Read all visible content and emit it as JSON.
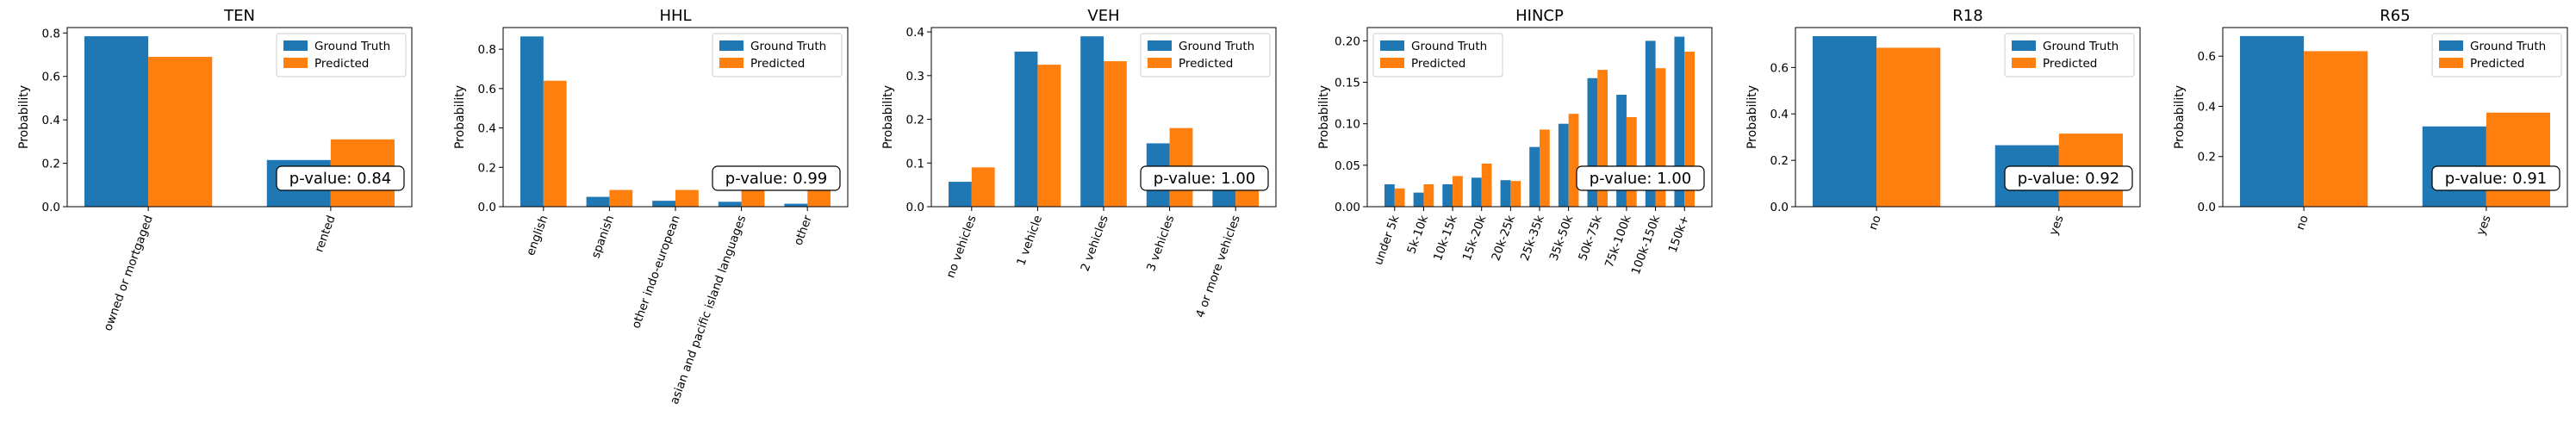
{
  "colors": {
    "ground_truth": "#1f77b4",
    "predicted": "#ff7f0e"
  },
  "chart_data": [
    {
      "type": "bar",
      "title": "TEN",
      "ylabel": "Probability",
      "categories": [
        "owned or mortgaged",
        "rented"
      ],
      "series": [
        {
          "name": "Ground Truth",
          "values": [
            0.785,
            0.215
          ]
        },
        {
          "name": "Predicted",
          "values": [
            0.69,
            0.31
          ]
        }
      ],
      "ylim": [
        0,
        0.825
      ],
      "yticks": [
        0.0,
        0.2,
        0.4,
        0.6,
        0.8
      ],
      "ytick_labels": [
        "0.0",
        "0.2",
        "0.4",
        "0.6",
        "0.8"
      ],
      "legend": "top-right",
      "annotation": "p-value: 0.84"
    },
    {
      "type": "bar",
      "title": "HHL",
      "ylabel": "Probability",
      "categories": [
        "english",
        "spanish",
        "other indo-european",
        "asian and pacific island languages",
        "other"
      ],
      "series": [
        {
          "name": "Ground Truth",
          "values": [
            0.865,
            0.05,
            0.03,
            0.025,
            0.015
          ]
        },
        {
          "name": "Predicted",
          "values": [
            0.64,
            0.085,
            0.085,
            0.09,
            0.1
          ]
        }
      ],
      "ylim": [
        0,
        0.91
      ],
      "yticks": [
        0.0,
        0.2,
        0.4,
        0.6,
        0.8
      ],
      "ytick_labels": [
        "0.0",
        "0.2",
        "0.4",
        "0.6",
        "0.8"
      ],
      "legend": "top-right",
      "annotation": "p-value: 0.99"
    },
    {
      "type": "bar",
      "title": "VEH",
      "ylabel": "Probability",
      "categories": [
        "no vehicles",
        "1 vehicle",
        "2 vehicles",
        "3 vehicles",
        "4 or more vehicles"
      ],
      "series": [
        {
          "name": "Ground Truth",
          "values": [
            0.057,
            0.355,
            0.39,
            0.145,
            0.05
          ]
        },
        {
          "name": "Predicted",
          "values": [
            0.09,
            0.325,
            0.333,
            0.18,
            0.072
          ]
        }
      ],
      "ylim": [
        0,
        0.41
      ],
      "yticks": [
        0.0,
        0.1,
        0.2,
        0.3,
        0.4
      ],
      "ytick_labels": [
        "0.0",
        "0.1",
        "0.2",
        "0.3",
        "0.4"
      ],
      "legend": "top-right",
      "annotation": "p-value: 1.00"
    },
    {
      "type": "bar",
      "title": "HINCP",
      "ylabel": "Probability",
      "categories": [
        "under 5k",
        "5k-10k",
        "10k-15k",
        "15k-20k",
        "20k-25k",
        "25k-35k",
        "35k-50k",
        "50k-75k",
        "75k-100k",
        "100k-150k",
        "150k+"
      ],
      "series": [
        {
          "name": "Ground Truth",
          "values": [
            0.027,
            0.017,
            0.027,
            0.035,
            0.032,
            0.072,
            0.1,
            0.155,
            0.135,
            0.2,
            0.205
          ]
        },
        {
          "name": "Predicted",
          "values": [
            0.022,
            0.027,
            0.037,
            0.052,
            0.031,
            0.093,
            0.112,
            0.165,
            0.108,
            0.167,
            0.187
          ]
        }
      ],
      "ylim": [
        0,
        0.216
      ],
      "yticks": [
        0.0,
        0.05,
        0.1,
        0.15,
        0.2
      ],
      "ytick_labels": [
        "0.00",
        "0.05",
        "0.10",
        "0.15",
        "0.20"
      ],
      "legend": "top-left",
      "annotation": "p-value: 1.00"
    },
    {
      "type": "bar",
      "title": "R18",
      "ylabel": "Probability",
      "categories": [
        "no",
        "yes"
      ],
      "series": [
        {
          "name": "Ground Truth",
          "values": [
            0.735,
            0.265
          ]
        },
        {
          "name": "Predicted",
          "values": [
            0.685,
            0.315
          ]
        }
      ],
      "ylim": [
        0,
        0.772
      ],
      "yticks": [
        0.0,
        0.2,
        0.4,
        0.6
      ],
      "ytick_labels": [
        "0.0",
        "0.2",
        "0.4",
        "0.6"
      ],
      "legend": "top-right",
      "annotation": "p-value: 0.92"
    },
    {
      "type": "bar",
      "title": "R65",
      "ylabel": "Probability",
      "categories": [
        "no",
        "yes"
      ],
      "series": [
        {
          "name": "Ground Truth",
          "values": [
            0.68,
            0.32
          ]
        },
        {
          "name": "Predicted",
          "values": [
            0.62,
            0.375
          ]
        }
      ],
      "ylim": [
        0,
        0.714
      ],
      "yticks": [
        0.0,
        0.2,
        0.4,
        0.6
      ],
      "ytick_labels": [
        "0.0",
        "0.2",
        "0.4",
        "0.6"
      ],
      "legend": "top-right",
      "annotation": "p-value: 0.91"
    }
  ]
}
